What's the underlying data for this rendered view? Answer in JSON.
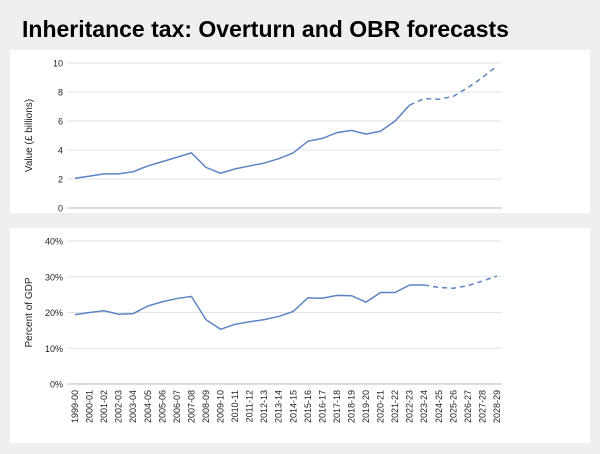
{
  "title": "Inheritance tax: Overturn and OBR forecasts",
  "chart_data": [
    {
      "type": "line",
      "ylabel": "Value (£ billions)",
      "ylim": [
        0,
        10
      ],
      "yticks": [
        "0",
        "2",
        "4",
        "6",
        "8",
        "10"
      ],
      "grid": true,
      "line_color": "#5b84c4",
      "forecast_start": "2022-23",
      "categories": [
        "1999-00",
        "2000-01",
        "2001-02",
        "2002-03",
        "2003-04",
        "2004-05",
        "2005-06",
        "2006-07",
        "2007-08",
        "2008-09",
        "2009-10",
        "2010-11",
        "2011-12",
        "2012-13",
        "2013-14",
        "2014-15",
        "2015-16",
        "2016-17",
        "2017-18",
        "2018-19",
        "2019-20",
        "2020-21",
        "2021-22",
        "2022-23",
        "2023-24",
        "2024-25",
        "2025-26",
        "2026-27",
        "2027-28",
        "2028-29"
      ],
      "values": [
        2.05,
        2.2,
        2.35,
        2.35,
        2.5,
        2.9,
        3.2,
        3.5,
        3.8,
        2.8,
        2.4,
        2.7,
        2.9,
        3.1,
        3.4,
        3.8,
        4.6,
        4.8,
        5.2,
        5.35,
        5.1,
        5.3,
        6.0,
        7.1,
        7.55,
        7.5,
        7.7,
        8.3,
        9.0,
        9.8
      ]
    },
    {
      "type": "line",
      "ylabel": "Percent of GDP",
      "ylim": [
        0,
        40
      ],
      "yticks": [
        "0%",
        "10%",
        "20%",
        "30%",
        "40%"
      ],
      "grid": true,
      "line_color": "#5b84c4",
      "forecast_start": "2023-24",
      "categories": [
        "1999-00",
        "2000-01",
        "2001-02",
        "2002-03",
        "2003-04",
        "2004-05",
        "2005-06",
        "2006-07",
        "2007-08",
        "2008-09",
        "2009-10",
        "2010-11",
        "2011-12",
        "2012-13",
        "2013-14",
        "2014-15",
        "2015-16",
        "2016-17",
        "2017-18",
        "2018-19",
        "2019-20",
        "2020-21",
        "2021-22",
        "2022-23",
        "2023-24",
        "2024-25",
        "2025-26",
        "2026-27",
        "2027-28",
        "2028-29"
      ],
      "values": [
        19.4,
        20.0,
        20.5,
        19.5,
        19.7,
        21.8,
        23.0,
        23.9,
        24.5,
        18.0,
        15.3,
        16.7,
        17.4,
        18.0,
        18.9,
        20.3,
        24.1,
        24.0,
        24.8,
        24.7,
        22.9,
        25.6,
        25.6,
        27.7,
        27.7,
        27.0,
        26.8,
        27.5,
        28.8,
        30.2
      ]
    }
  ]
}
